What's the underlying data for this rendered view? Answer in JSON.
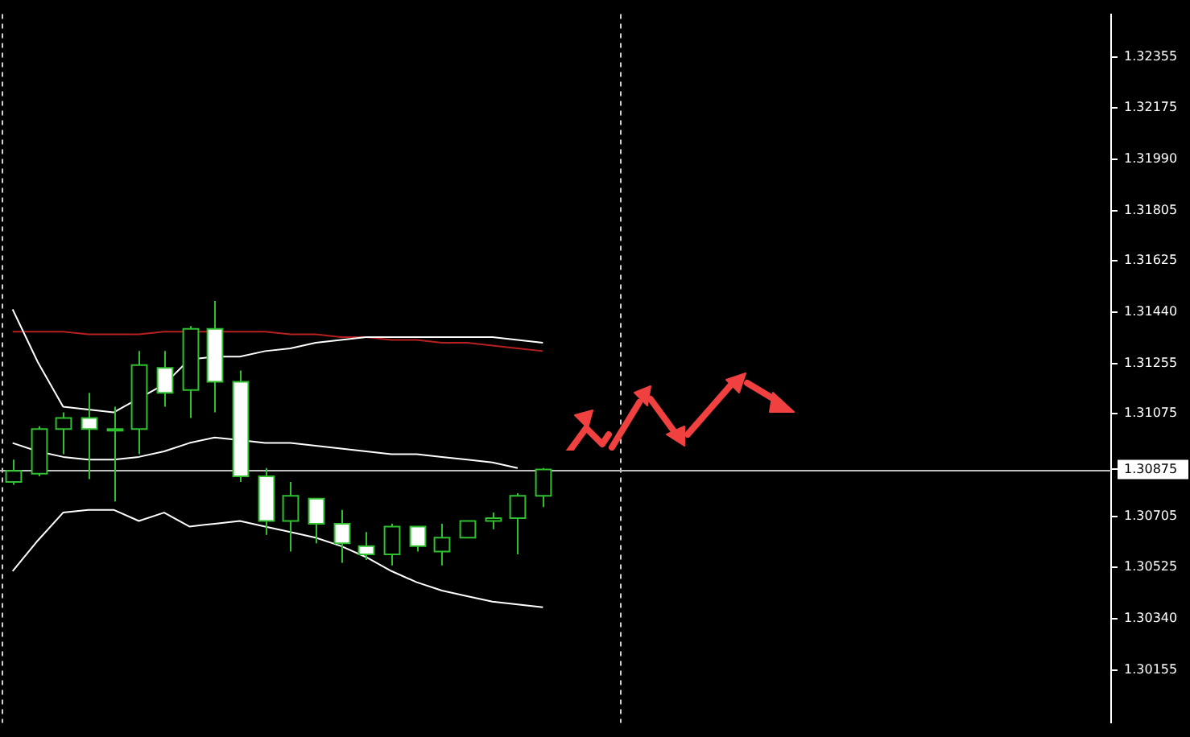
{
  "chart_data": {
    "type": "candlestick",
    "categories": [
      null,
      null,
      null,
      null,
      null,
      null,
      null,
      null,
      null,
      null,
      null,
      null,
      null,
      null,
      null,
      null,
      null,
      null,
      null,
      null,
      null,
      null,
      null,
      null,
      null,
      null,
      null,
      null,
      null,
      null,
      null,
      null,
      null,
      null,
      null,
      null,
      null,
      null,
      null,
      null,
      null,
      null,
      null,
      null
    ],
    "ohlc": [
      [
        1.3083,
        1.3091,
        1.3082,
        1.3087
      ],
      [
        1.3086,
        1.3103,
        1.3085,
        1.3102
      ],
      [
        1.3102,
        1.3108,
        1.3093,
        1.3106
      ],
      [
        1.3106,
        1.3115,
        1.3084,
        1.3102
      ],
      [
        1.3102,
        1.311,
        1.3076,
        1.3102
      ],
      [
        1.3102,
        1.313,
        1.3093,
        1.3125
      ],
      [
        1.3124,
        1.313,
        1.311,
        1.3115
      ],
      [
        1.3116,
        1.3139,
        1.3106,
        1.3138
      ],
      [
        1.3138,
        1.3148,
        1.3108,
        1.3119
      ],
      [
        1.3119,
        1.3123,
        1.3083,
        1.3085
      ],
      [
        1.3085,
        1.3088,
        1.3064,
        1.3069
      ],
      [
        1.3069,
        1.3083,
        1.3058,
        1.3078
      ],
      [
        1.3077,
        1.3077,
        1.3061,
        1.3068
      ],
      [
        1.3068,
        1.3073,
        1.3054,
        1.3061
      ],
      [
        1.306,
        1.3065,
        1.3055,
        1.3057
      ],
      [
        1.3057,
        1.3068,
        1.3053,
        1.3067
      ],
      [
        1.3067,
        1.3067,
        1.3058,
        1.306
      ],
      [
        1.3058,
        1.3068,
        1.3053,
        1.3063
      ],
      [
        1.3063,
        1.3069,
        1.3063,
        1.3069
      ],
      [
        1.3069,
        1.3072,
        1.3066,
        1.307
      ],
      [
        1.307,
        1.3079,
        1.3057,
        1.3078
      ],
      [
        1.3078,
        1.3088,
        1.3074,
        1.30875
      ],
      null,
      null,
      null,
      null,
      null,
      null,
      null,
      null,
      null,
      null,
      null,
      null,
      null,
      null,
      null,
      null,
      null,
      null,
      null,
      null,
      null,
      null
    ],
    "color": "#2ec02e",
    "colors": [
      "#000000",
      "#000000",
      "#000000",
      "#ffffff",
      "#ffffff",
      "#000000",
      "#ffffff",
      "#000000",
      "#ffffff",
      "#ffffff",
      "#ffffff",
      "#000000",
      "#ffffff",
      "#ffffff",
      "#ffffff",
      "#000000",
      "#ffffff",
      "#000000",
      "#000000",
      "#000000",
      "#000000",
      "#000000",
      null,
      null,
      null,
      null,
      null,
      null,
      null,
      null,
      null,
      null,
      null,
      null,
      null,
      null,
      null,
      null,
      null,
      null,
      null,
      null,
      null,
      null
    ],
    "series": [
      {
        "type": "line",
        "color": "#ffffff",
        "values": [
          1.3145,
          1.3126,
          1.311,
          1.3109,
          1.3108,
          1.3113,
          1.3118,
          1.3127,
          1.3128,
          1.3128,
          1.313,
          1.3131,
          1.3133,
          1.3134,
          1.3135,
          1.3135,
          1.3135,
          1.3135,
          1.3135,
          1.3135,
          1.3134,
          1.3133,
          null,
          null,
          null,
          null,
          null,
          null,
          null,
          null,
          null,
          null,
          null,
          null,
          null,
          null,
          null,
          null,
          null,
          null,
          null,
          null,
          null,
          null
        ]
      },
      {
        "type": "line",
        "color": "#ffffff",
        "values": [
          1.3097,
          1.3094,
          1.3092,
          1.3091,
          1.3091,
          1.3092,
          1.3094,
          1.3097,
          1.3099,
          1.3098,
          1.3097,
          1.3097,
          1.3096,
          1.3095,
          1.3094,
          1.3093,
          1.3093,
          1.3092,
          1.3091,
          1.309,
          1.3088,
          null,
          null,
          null,
          null,
          null,
          null,
          null,
          null,
          null,
          null,
          null,
          null,
          null,
          null,
          null,
          null,
          null,
          null,
          null,
          null,
          null,
          null,
          null
        ]
      },
      {
        "type": "line",
        "color": "#ffffff",
        "values": [
          1.3051,
          1.3062,
          1.3072,
          1.3073,
          1.3073,
          1.3069,
          1.3072,
          1.3067,
          1.3068,
          1.3069,
          1.3067,
          1.3065,
          1.3063,
          1.306,
          1.3056,
          1.3051,
          1.3047,
          1.3044,
          1.3042,
          1.304,
          1.3039,
          1.3038,
          null,
          null,
          null,
          null,
          null,
          null,
          null,
          null,
          null,
          null,
          null,
          null,
          null,
          null,
          null,
          null,
          null,
          null,
          null,
          null,
          null,
          null
        ]
      },
      {
        "type": "line",
        "color": "#b82020",
        "values": [
          1.3137,
          1.3137,
          1.3137,
          1.3136,
          1.3136,
          1.3136,
          1.3137,
          null,
          null,
          1.3137,
          1.3137,
          1.3136,
          1.3136,
          1.3135,
          1.3135,
          1.3134,
          1.3134,
          1.3133,
          1.3133,
          1.3132,
          1.3131,
          1.313,
          null,
          null,
          null,
          null,
          null,
          null,
          null,
          null,
          null,
          null,
          null,
          null,
          null,
          null,
          null,
          null,
          null,
          null,
          null,
          null,
          null,
          null
        ]
      }
    ],
    "ylim": [
      1.29965,
      1.3251
    ],
    "yticks": [
      1.32355,
      1.32175,
      {
        "value": 1.3199,
        "label": "1.31990"
      },
      1.31805,
      1.31625,
      {
        "value": 1.3144,
        "label": "1.31440"
      },
      1.31255,
      1.31075,
      1.30875,
      1.30705,
      1.30525,
      {
        "value": 1.3034,
        "label": "1.30340"
      },
      1.30155
    ],
    "tick_labels": "y",
    "grid": false,
    "legend": false,
    "ref_lines": [
      {
        "axis": "y",
        "value": 1.30875,
        "color": "#c0c0c0"
      }
    ]
  }
}
